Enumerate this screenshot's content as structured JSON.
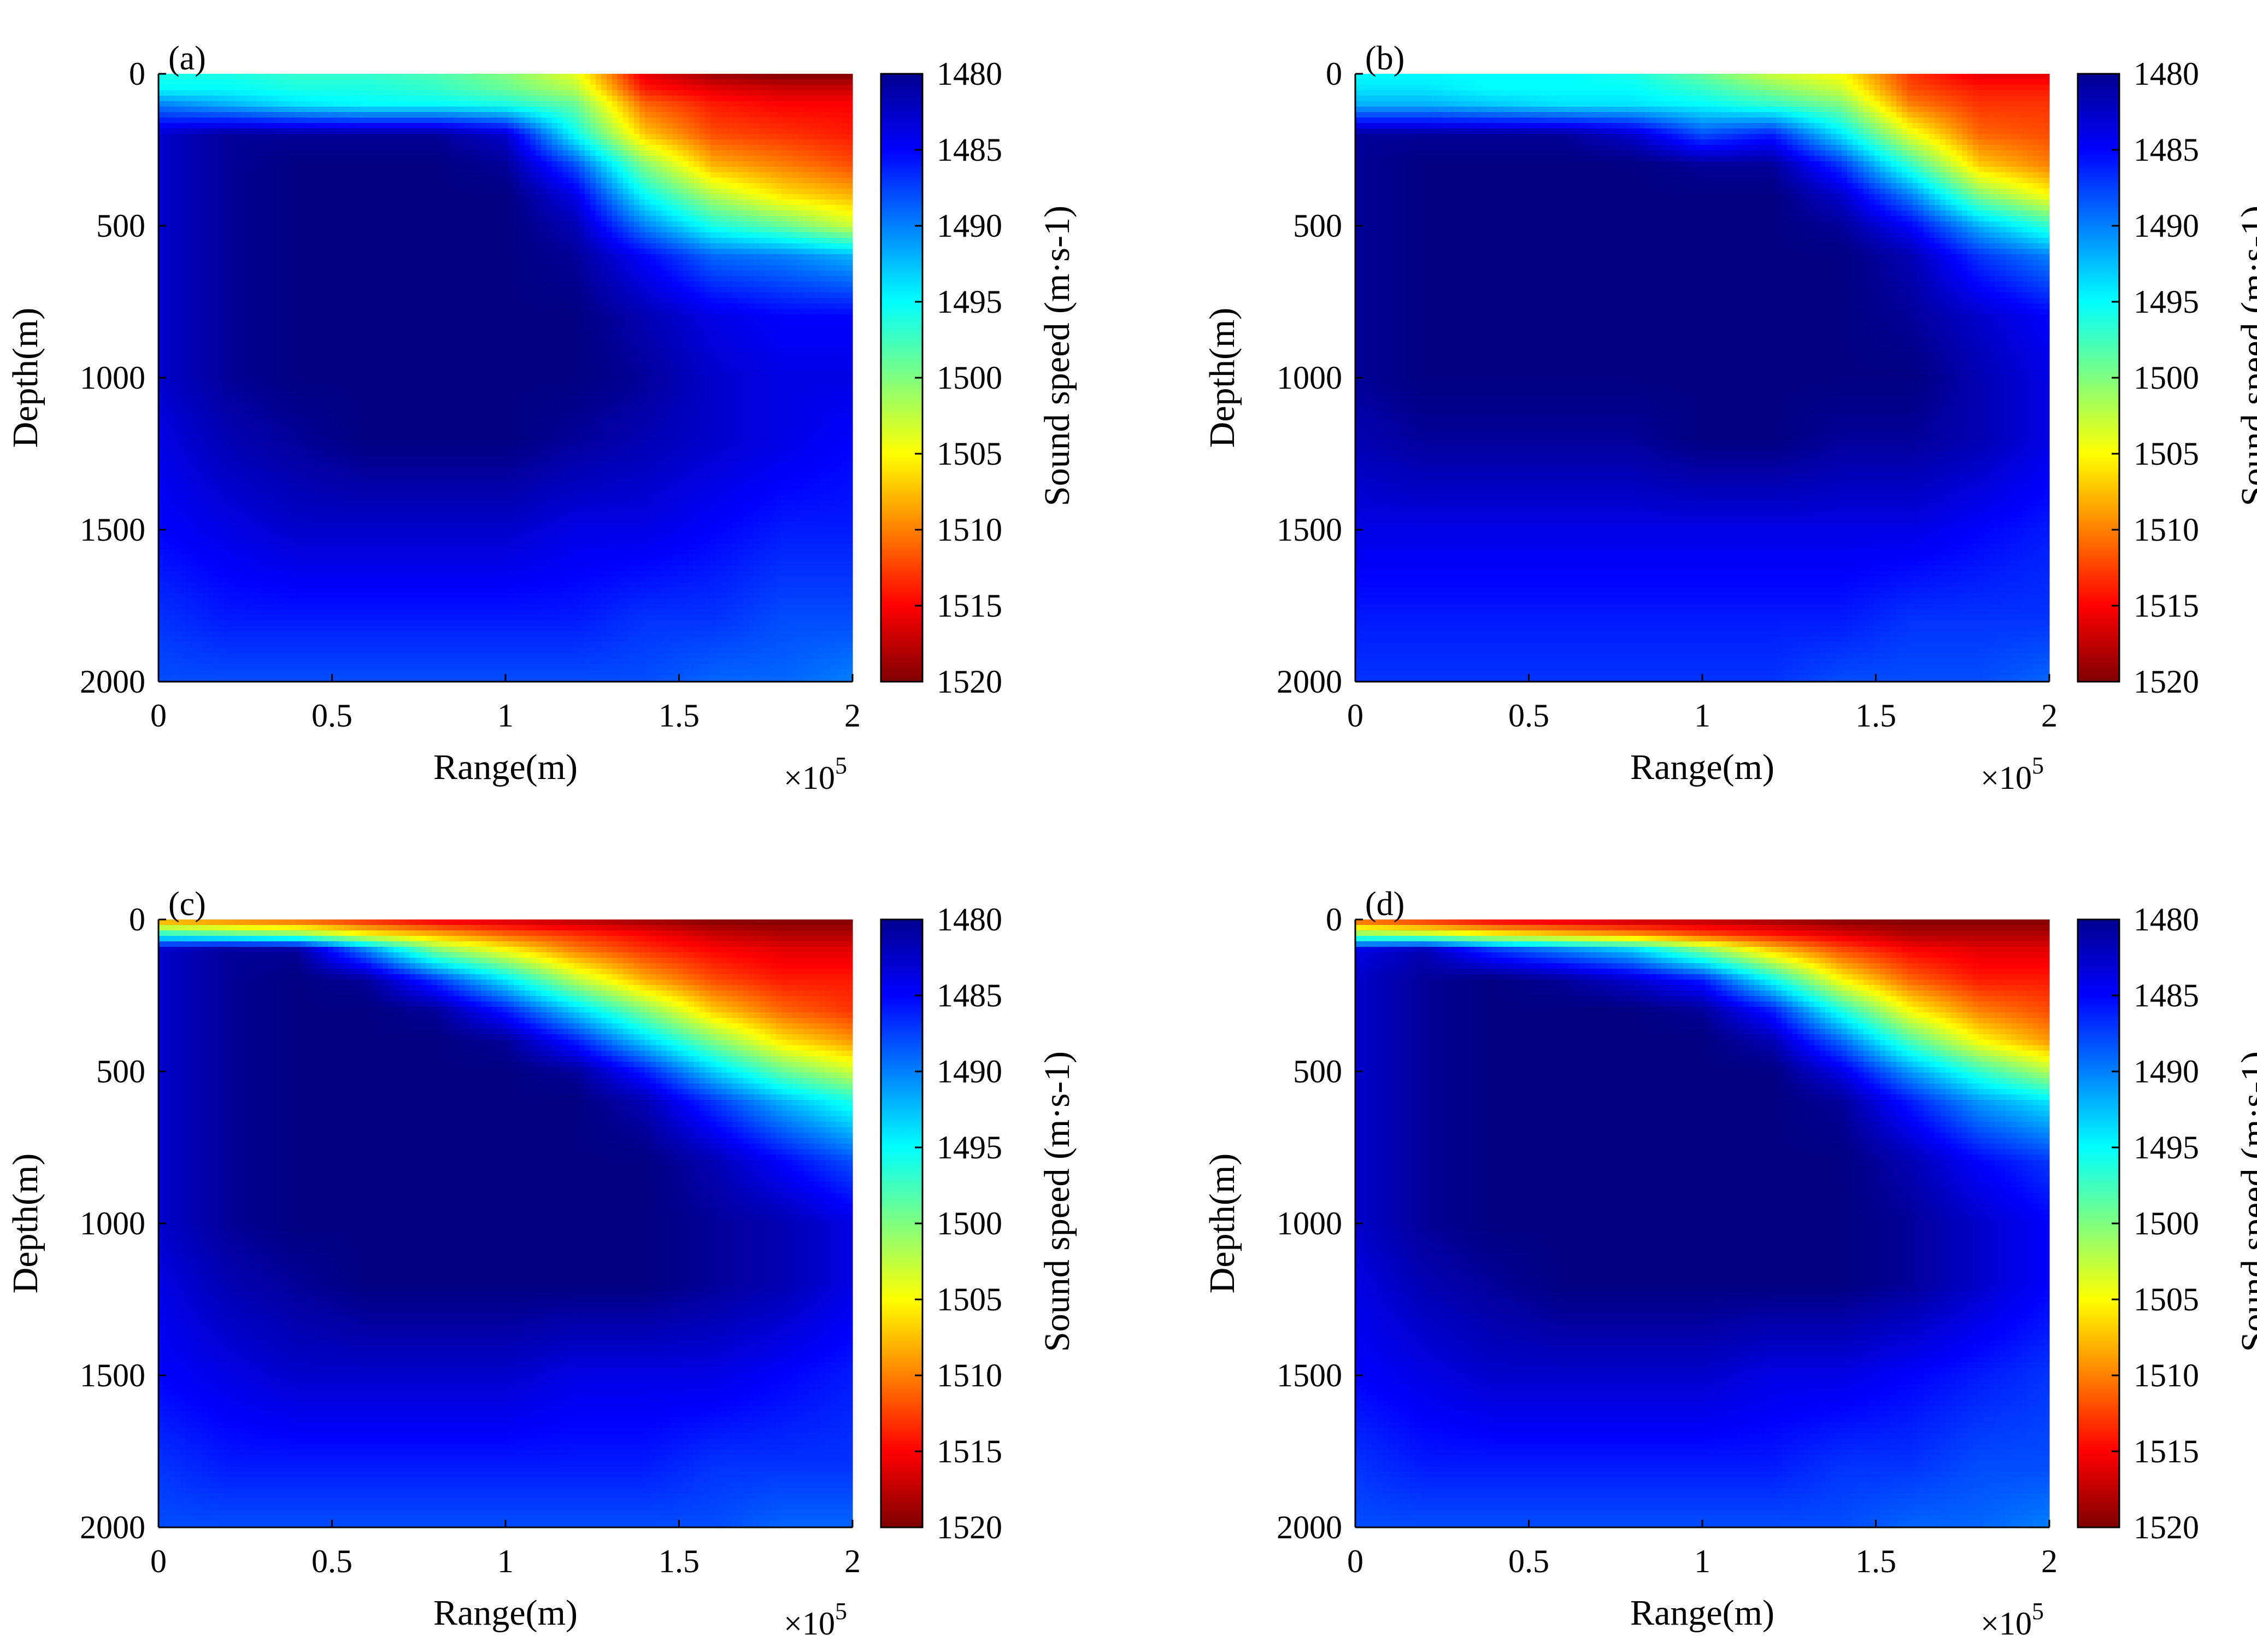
{
  "chart_data": [
    {
      "type": "heatmap",
      "panel_label": "(a)",
      "xlabel": "Range(m)",
      "ylabel": "Depth(m)",
      "x_exponent_label": "×10",
      "x_exponent_power": "5",
      "xlim": [
        0,
        200000
      ],
      "ylim": [
        0,
        2000
      ],
      "y_reversed": true,
      "x_ticks": [
        0,
        50000,
        100000,
        150000,
        200000
      ],
      "x_tick_labels": [
        "0",
        "0.5",
        "1",
        "1.5",
        "2"
      ],
      "y_ticks": [
        0,
        500,
        1000,
        1500,
        2000
      ],
      "y_tick_labels": [
        "0",
        "500",
        "1000",
        "1500",
        "2000"
      ],
      "colorbar": {
        "label": "Sound speed (m·s-1)",
        "range": [
          1480,
          1520
        ],
        "ticks": [
          1480,
          1485,
          1490,
          1495,
          1500,
          1505,
          1510,
          1515,
          1520
        ],
        "tick_labels": [
          "1480",
          "1485",
          "1490",
          "1495",
          "1500",
          "1505",
          "1510",
          "1515",
          "1520"
        ],
        "colormap": "jet",
        "reversed": true
      },
      "field": {
        "x_km": [
          0,
          20,
          40,
          60,
          80,
          100,
          120,
          140,
          160,
          180,
          200
        ],
        "depth_m": [
          0,
          50,
          100,
          200,
          300,
          400,
          500,
          600,
          800,
          1000,
          1200,
          1500,
          1800,
          2000
        ],
        "speed": [
          [
            1496,
            1496,
            1497,
            1497,
            1498,
            1500,
            1504,
            1516,
            1519,
            1520,
            1520
          ],
          [
            1495,
            1495,
            1496,
            1496,
            1497,
            1499,
            1502,
            1514,
            1516,
            1517,
            1517
          ],
          [
            1490,
            1492,
            1494,
            1495,
            1495,
            1496,
            1499,
            1511,
            1514,
            1515,
            1515
          ],
          [
            1483,
            1481,
            1481,
            1481,
            1481,
            1483,
            1495,
            1507,
            1512,
            1513,
            1514
          ],
          [
            1483,
            1481,
            1480,
            1480,
            1480,
            1481,
            1488,
            1500,
            1508,
            1510,
            1512
          ],
          [
            1483,
            1481,
            1480,
            1480,
            1480,
            1480,
            1484,
            1495,
            1502,
            1506,
            1508
          ],
          [
            1483,
            1481,
            1480,
            1480,
            1480,
            1480,
            1482,
            1490,
            1496,
            1499,
            1503
          ],
          [
            1483,
            1481,
            1480,
            1480,
            1480,
            1480,
            1481,
            1485,
            1489,
            1490,
            1492
          ],
          [
            1483,
            1481,
            1480,
            1480,
            1480,
            1480,
            1480,
            1482,
            1484,
            1485,
            1485
          ],
          [
            1483,
            1481,
            1480,
            1480,
            1480,
            1480,
            1480,
            1481,
            1483,
            1484,
            1484
          ],
          [
            1484,
            1482,
            1481,
            1480,
            1480,
            1480,
            1481,
            1482,
            1483,
            1484,
            1485
          ],
          [
            1485,
            1484,
            1483,
            1483,
            1483,
            1483,
            1484,
            1484,
            1485,
            1486,
            1486
          ],
          [
            1487,
            1486,
            1486,
            1486,
            1486,
            1486,
            1486,
            1487,
            1487,
            1488,
            1488
          ],
          [
            1488,
            1488,
            1488,
            1488,
            1488,
            1488,
            1488,
            1488,
            1489,
            1489,
            1490
          ]
        ]
      }
    },
    {
      "type": "heatmap",
      "panel_label": "(b)",
      "xlabel": "Range(m)",
      "ylabel": "Depth(m)",
      "x_exponent_label": "×10",
      "x_exponent_power": "5",
      "xlim": [
        0,
        200000
      ],
      "ylim": [
        0,
        2000
      ],
      "y_reversed": true,
      "x_ticks": [
        0,
        50000,
        100000,
        150000,
        200000
      ],
      "x_tick_labels": [
        "0",
        "0.5",
        "1",
        "1.5",
        "2"
      ],
      "y_ticks": [
        0,
        500,
        1000,
        1500,
        2000
      ],
      "y_tick_labels": [
        "0",
        "500",
        "1000",
        "1500",
        "2000"
      ],
      "colorbar": {
        "label": "Sound speed (m·s-1)",
        "range": [
          1480,
          1520
        ],
        "ticks": [
          1480,
          1485,
          1490,
          1495,
          1500,
          1505,
          1510,
          1515,
          1520
        ],
        "tick_labels": [
          "1480",
          "1485",
          "1490",
          "1495",
          "1500",
          "1505",
          "1510",
          "1515",
          "1520"
        ],
        "colormap": "jet",
        "reversed": true
      },
      "field": {
        "x_km": [
          0,
          20,
          40,
          60,
          80,
          100,
          120,
          140,
          160,
          180,
          200
        ],
        "depth_m": [
          0,
          50,
          100,
          200,
          300,
          400,
          500,
          600,
          800,
          1000,
          1200,
          1500,
          1800,
          2000
        ],
        "speed": [
          [
            1495,
            1495,
            1495,
            1495,
            1496,
            1499,
            1503,
            1505,
            1513,
            1516,
            1516
          ],
          [
            1494,
            1494,
            1495,
            1495,
            1495,
            1497,
            1500,
            1503,
            1512,
            1514,
            1514
          ],
          [
            1492,
            1492,
            1493,
            1494,
            1494,
            1495,
            1497,
            1500,
            1510,
            1513,
            1513
          ],
          [
            1481,
            1481,
            1481,
            1481,
            1483,
            1488,
            1486,
            1494,
            1504,
            1511,
            1512
          ],
          [
            1481,
            1480,
            1480,
            1480,
            1480,
            1481,
            1481,
            1487,
            1497,
            1507,
            1510
          ],
          [
            1481,
            1480,
            1480,
            1480,
            1480,
            1480,
            1480,
            1483,
            1490,
            1500,
            1505
          ],
          [
            1481,
            1480,
            1480,
            1480,
            1480,
            1480,
            1480,
            1481,
            1485,
            1492,
            1497
          ],
          [
            1481,
            1480,
            1480,
            1480,
            1480,
            1480,
            1480,
            1480,
            1482,
            1487,
            1490
          ],
          [
            1481,
            1480,
            1480,
            1480,
            1480,
            1480,
            1480,
            1480,
            1481,
            1483,
            1485
          ],
          [
            1481,
            1480,
            1480,
            1480,
            1480,
            1480,
            1480,
            1480,
            1480,
            1482,
            1484
          ],
          [
            1482,
            1481,
            1481,
            1481,
            1481,
            1480,
            1480,
            1481,
            1481,
            1482,
            1484
          ],
          [
            1484,
            1484,
            1484,
            1484,
            1484,
            1484,
            1484,
            1484,
            1484,
            1485,
            1486
          ],
          [
            1486,
            1486,
            1486,
            1486,
            1486,
            1486,
            1486,
            1486,
            1487,
            1487,
            1487
          ],
          [
            1487,
            1487,
            1487,
            1487,
            1487,
            1487,
            1487,
            1488,
            1488,
            1488,
            1489
          ]
        ]
      }
    },
    {
      "type": "heatmap",
      "panel_label": "(c)",
      "xlabel": "Range(m)",
      "ylabel": "Depth(m)",
      "x_exponent_label": "×10",
      "x_exponent_power": "5",
      "xlim": [
        0,
        200000
      ],
      "ylim": [
        0,
        2000
      ],
      "y_reversed": true,
      "x_ticks": [
        0,
        50000,
        100000,
        150000,
        200000
      ],
      "x_tick_labels": [
        "0",
        "0.5",
        "1",
        "1.5",
        "2"
      ],
      "y_ticks": [
        0,
        500,
        1000,
        1500,
        2000
      ],
      "y_tick_labels": [
        "0",
        "500",
        "1000",
        "1500",
        "2000"
      ],
      "colorbar": {
        "label": "Sound speed (m·s-1)",
        "range": [
          1480,
          1520
        ],
        "ticks": [
          1480,
          1485,
          1490,
          1495,
          1500,
          1505,
          1510,
          1515,
          1520
        ],
        "tick_labels": [
          "1480",
          "1485",
          "1490",
          "1495",
          "1500",
          "1505",
          "1510",
          "1515",
          "1520"
        ],
        "colormap": "jet",
        "reversed": true
      },
      "field": {
        "x_km": [
          0,
          20,
          40,
          60,
          80,
          100,
          120,
          140,
          160,
          180,
          200
        ],
        "depth_m": [
          0,
          50,
          100,
          200,
          300,
          400,
          500,
          600,
          800,
          1000,
          1200,
          1500,
          1800,
          2000
        ],
        "speed": [
          [
            1510,
            1511,
            1512,
            1514,
            1516,
            1517,
            1518,
            1519,
            1520,
            1520,
            1520
          ],
          [
            1496,
            1498,
            1500,
            1505,
            1508,
            1511,
            1513,
            1515,
            1517,
            1518,
            1518
          ],
          [
            1483,
            1481,
            1481,
            1490,
            1500,
            1505,
            1510,
            1513,
            1515,
            1516,
            1516
          ],
          [
            1483,
            1481,
            1480,
            1481,
            1487,
            1494,
            1502,
            1508,
            1512,
            1514,
            1514
          ],
          [
            1483,
            1481,
            1480,
            1480,
            1481,
            1486,
            1493,
            1500,
            1507,
            1511,
            1513
          ],
          [
            1483,
            1481,
            1480,
            1480,
            1480,
            1481,
            1486,
            1493,
            1500,
            1506,
            1509
          ],
          [
            1483,
            1481,
            1480,
            1480,
            1480,
            1480,
            1481,
            1486,
            1493,
            1499,
            1503
          ],
          [
            1483,
            1481,
            1480,
            1480,
            1480,
            1480,
            1480,
            1482,
            1487,
            1492,
            1496
          ],
          [
            1483,
            1481,
            1480,
            1480,
            1480,
            1480,
            1480,
            1480,
            1482,
            1485,
            1488
          ],
          [
            1483,
            1481,
            1480,
            1480,
            1480,
            1480,
            1480,
            1480,
            1481,
            1482,
            1484
          ],
          [
            1484,
            1482,
            1481,
            1480,
            1480,
            1480,
            1480,
            1480,
            1481,
            1482,
            1484
          ],
          [
            1485,
            1484,
            1483,
            1483,
            1483,
            1483,
            1484,
            1484,
            1484,
            1485,
            1486
          ],
          [
            1487,
            1486,
            1486,
            1486,
            1486,
            1486,
            1486,
            1486,
            1487,
            1487,
            1487
          ],
          [
            1488,
            1488,
            1488,
            1488,
            1488,
            1488,
            1488,
            1488,
            1488,
            1489,
            1489
          ]
        ]
      }
    },
    {
      "type": "heatmap",
      "panel_label": "(d)",
      "xlabel": "Range(m)",
      "ylabel": "Depth(m)",
      "x_exponent_label": "×10",
      "x_exponent_power": "5",
      "xlim": [
        0,
        200000
      ],
      "ylim": [
        0,
        2000
      ],
      "y_reversed": true,
      "x_ticks": [
        0,
        50000,
        100000,
        150000,
        200000
      ],
      "x_tick_labels": [
        "0",
        "0.5",
        "1",
        "1.5",
        "2"
      ],
      "y_ticks": [
        0,
        500,
        1000,
        1500,
        2000
      ],
      "y_tick_labels": [
        "0",
        "500",
        "1000",
        "1500",
        "2000"
      ],
      "colorbar": {
        "label": "Sound speed (m·s-1)",
        "range": [
          1480,
          1520
        ],
        "ticks": [
          1480,
          1485,
          1490,
          1495,
          1500,
          1505,
          1510,
          1515,
          1520
        ],
        "tick_labels": [
          "1480",
          "1485",
          "1490",
          "1495",
          "1500",
          "1505",
          "1510",
          "1515",
          "1520"
        ],
        "colormap": "jet",
        "reversed": true
      },
      "field": {
        "x_km": [
          0,
          20,
          40,
          60,
          80,
          100,
          120,
          140,
          160,
          180,
          200
        ],
        "depth_m": [
          0,
          50,
          100,
          200,
          300,
          400,
          500,
          600,
          800,
          1000,
          1200,
          1500,
          1800,
          2000
        ],
        "speed": [
          [
            1512,
            1514,
            1516,
            1517,
            1518,
            1518,
            1519,
            1520,
            1520,
            1520,
            1520
          ],
          [
            1500,
            1502,
            1505,
            1507,
            1509,
            1512,
            1514,
            1516,
            1518,
            1518,
            1518
          ],
          [
            1484,
            1482,
            1487,
            1490,
            1493,
            1500,
            1507,
            1512,
            1515,
            1516,
            1516
          ],
          [
            1483,
            1481,
            1480,
            1481,
            1483,
            1486,
            1495,
            1505,
            1511,
            1514,
            1514
          ],
          [
            1483,
            1481,
            1480,
            1480,
            1480,
            1481,
            1486,
            1496,
            1505,
            1510,
            1512
          ],
          [
            1483,
            1481,
            1480,
            1480,
            1480,
            1480,
            1482,
            1489,
            1498,
            1505,
            1509
          ],
          [
            1483,
            1481,
            1480,
            1480,
            1480,
            1480,
            1480,
            1484,
            1491,
            1497,
            1502
          ],
          [
            1483,
            1481,
            1480,
            1480,
            1480,
            1480,
            1480,
            1481,
            1486,
            1491,
            1494
          ],
          [
            1483,
            1481,
            1480,
            1480,
            1480,
            1480,
            1480,
            1480,
            1482,
            1485,
            1487
          ],
          [
            1483,
            1481,
            1480,
            1480,
            1480,
            1480,
            1480,
            1480,
            1481,
            1483,
            1485
          ],
          [
            1484,
            1482,
            1481,
            1480,
            1480,
            1480,
            1480,
            1480,
            1481,
            1483,
            1485
          ],
          [
            1485,
            1484,
            1483,
            1483,
            1483,
            1483,
            1484,
            1484,
            1485,
            1486,
            1487
          ],
          [
            1487,
            1486,
            1486,
            1486,
            1486,
            1486,
            1486,
            1487,
            1487,
            1488,
            1488
          ],
          [
            1488,
            1488,
            1488,
            1488,
            1488,
            1488,
            1488,
            1488,
            1489,
            1489,
            1490
          ]
        ]
      }
    }
  ]
}
